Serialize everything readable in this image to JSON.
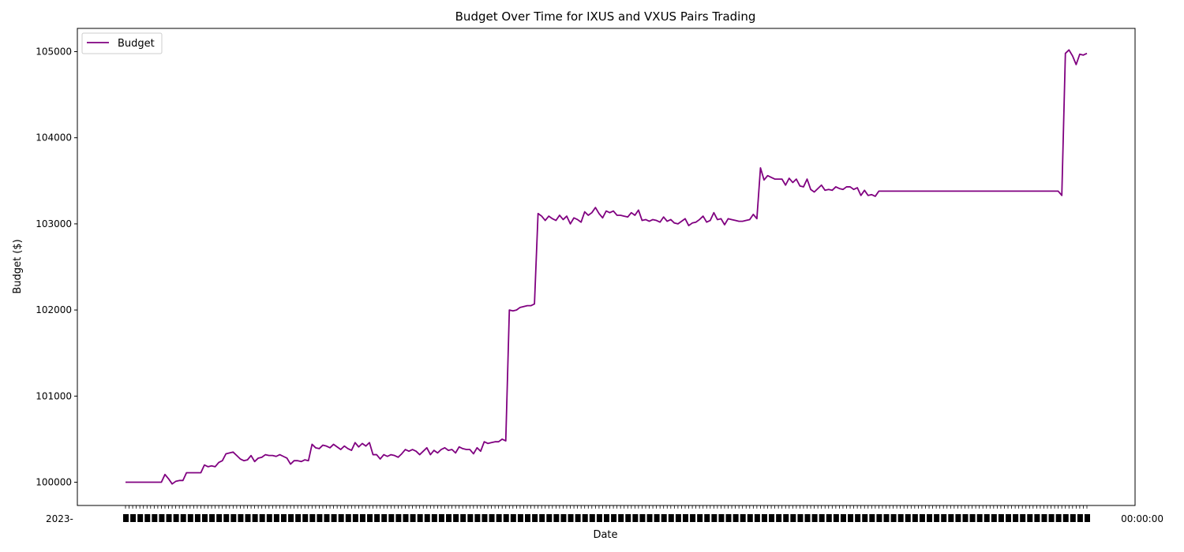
{
  "chart_data": {
    "type": "line",
    "title": "Budget Over Time for IXUS and VXUS Pairs Trading",
    "xlabel": "Date",
    "ylabel": "Budget ($)",
    "ylim": [
      99730,
      105270
    ],
    "yticks": [
      100000,
      101000,
      102000,
      103000,
      104000,
      105000
    ],
    "xtick_labels": {
      "left": "2023-",
      "right": "00:00:00"
    },
    "legend": {
      "position": "top-left"
    },
    "grid": false,
    "series": [
      {
        "name": "Budget",
        "color": "#800080",
        "values": [
          100000,
          100000,
          100000,
          100000,
          100000,
          100000,
          100000,
          100000,
          100000,
          100000,
          100000,
          100090,
          100040,
          99980,
          100010,
          100020,
          100020,
          100110,
          100110,
          100110,
          100110,
          100110,
          100200,
          100180,
          100190,
          100180,
          100230,
          100250,
          100330,
          100340,
          100350,
          100310,
          100270,
          100250,
          100260,
          100310,
          100240,
          100280,
          100290,
          100320,
          100310,
          100310,
          100300,
          100320,
          100300,
          100280,
          100210,
          100250,
          100250,
          100240,
          100260,
          100250,
          100440,
          100400,
          100390,
          100430,
          100420,
          100400,
          100440,
          100410,
          100380,
          100420,
          100390,
          100370,
          100460,
          100410,
          100450,
          100420,
          100460,
          100320,
          100320,
          100270,
          100320,
          100300,
          100320,
          100310,
          100290,
          100330,
          100380,
          100360,
          100380,
          100360,
          100320,
          100360,
          100400,
          100320,
          100370,
          100340,
          100380,
          100400,
          100370,
          100380,
          100340,
          100410,
          100390,
          100380,
          100380,
          100330,
          100400,
          100360,
          100470,
          100450,
          100460,
          100470,
          100470,
          100500,
          100480,
          102000,
          101990,
          102000,
          102030,
          102040,
          102050,
          102050,
          102070,
          103120,
          103090,
          103040,
          103090,
          103060,
          103040,
          103100,
          103050,
          103090,
          103000,
          103070,
          103050,
          103020,
          103140,
          103100,
          103130,
          103190,
          103120,
          103070,
          103150,
          103130,
          103150,
          103100,
          103100,
          103090,
          103080,
          103130,
          103100,
          103160,
          103040,
          103050,
          103030,
          103050,
          103040,
          103020,
          103080,
          103030,
          103050,
          103010,
          103000,
          103030,
          103060,
          102980,
          103010,
          103020,
          103050,
          103090,
          103020,
          103040,
          103130,
          103050,
          103060,
          102990,
          103060,
          103050,
          103040,
          103030,
          103030,
          103040,
          103050,
          103110,
          103060,
          103650,
          103510,
          103560,
          103540,
          103520,
          103520,
          103520,
          103450,
          103530,
          103480,
          103520,
          103440,
          103430,
          103520,
          103400,
          103370,
          103410,
          103450,
          103390,
          103400,
          103390,
          103430,
          103410,
          103400,
          103430,
          103430,
          103400,
          103420,
          103330,
          103390,
          103330,
          103340,
          103320,
          103380,
          103380,
          103380,
          103380,
          103380,
          103380,
          103380,
          103380,
          103380,
          103380,
          103380,
          103380,
          103380,
          103380,
          103380,
          103380,
          103380,
          103380,
          103380,
          103380,
          103380,
          103380,
          103380,
          103380,
          103380,
          103380,
          103380,
          103380,
          103380,
          103380,
          103380,
          103380,
          103380,
          103380,
          103380,
          103380,
          103380,
          103380,
          103380,
          103380,
          103380,
          103380,
          103380,
          103380,
          103380,
          103380,
          103380,
          103380,
          103380,
          103380,
          103380,
          103330,
          104980,
          105020,
          104950,
          104850,
          104970,
          104960,
          104980
        ]
      }
    ]
  }
}
